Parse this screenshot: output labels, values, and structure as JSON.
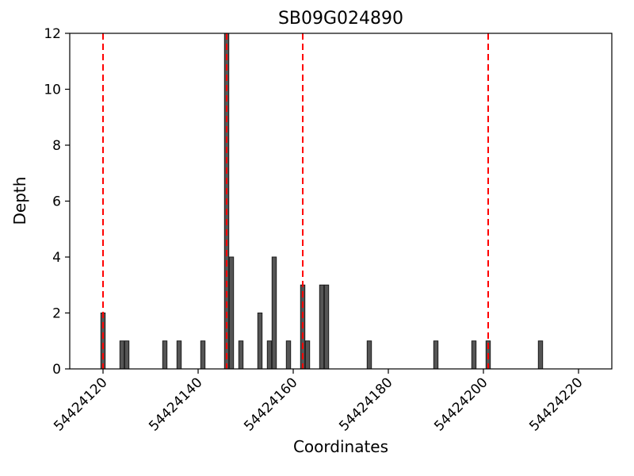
{
  "chart_data": {
    "type": "bar",
    "title": "SB09G024890",
    "xlabel": "Coordinates",
    "ylabel": "Depth",
    "xlim": [
      54424113,
      54424227
    ],
    "ylim": [
      0,
      12
    ],
    "xticks": [
      54424120,
      54424140,
      54424160,
      54424180,
      54424200,
      54424220
    ],
    "yticks": [
      0,
      2,
      4,
      6,
      8,
      10,
      12
    ],
    "grid": false,
    "legend": null,
    "bar_color": "#555555",
    "bar_edge_color": "#1a1a1a",
    "bar_width": 0.9,
    "bars": [
      {
        "x": 54424120,
        "depth": 2
      },
      {
        "x": 54424124,
        "depth": 1
      },
      {
        "x": 54424125,
        "depth": 1
      },
      {
        "x": 54424133,
        "depth": 1
      },
      {
        "x": 54424136,
        "depth": 1
      },
      {
        "x": 54424141,
        "depth": 1
      },
      {
        "x": 54424146,
        "depth": 12
      },
      {
        "x": 54424147,
        "depth": 4
      },
      {
        "x": 54424149,
        "depth": 1
      },
      {
        "x": 54424153,
        "depth": 2
      },
      {
        "x": 54424155,
        "depth": 1
      },
      {
        "x": 54424156,
        "depth": 4
      },
      {
        "x": 54424159,
        "depth": 1
      },
      {
        "x": 54424162,
        "depth": 3
      },
      {
        "x": 54424163,
        "depth": 1
      },
      {
        "x": 54424166,
        "depth": 3
      },
      {
        "x": 54424167,
        "depth": 3
      },
      {
        "x": 54424176,
        "depth": 1
      },
      {
        "x": 54424190,
        "depth": 1
      },
      {
        "x": 54424198,
        "depth": 1
      },
      {
        "x": 54424201,
        "depth": 1
      },
      {
        "x": 54424212,
        "depth": 1
      }
    ],
    "vlines": {
      "color": "#ff0000",
      "style": "dashed",
      "line_width": 2,
      "positions": [
        54424120,
        54424146,
        54424162,
        54424201
      ]
    },
    "axis_color": "#000000",
    "background": "#ffffff"
  }
}
